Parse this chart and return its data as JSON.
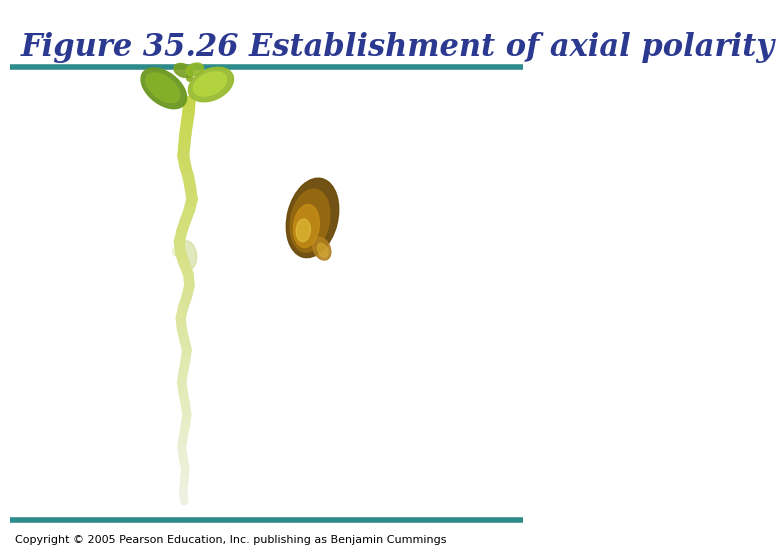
{
  "title": "Figure 35.26 Establishment of axial polarity",
  "title_color": "#2B3990",
  "title_fontsize": 22,
  "title_bold": true,
  "title_italic": true,
  "footer_text": "Copyright © 2005 Pearson Education, Inc. publishing as Benjamin Cummings",
  "footer_fontsize": 8,
  "footer_color": "#000000",
  "teal_color": "#2E8B8B",
  "bg_color": "#ffffff",
  "teal_linewidth": 4
}
